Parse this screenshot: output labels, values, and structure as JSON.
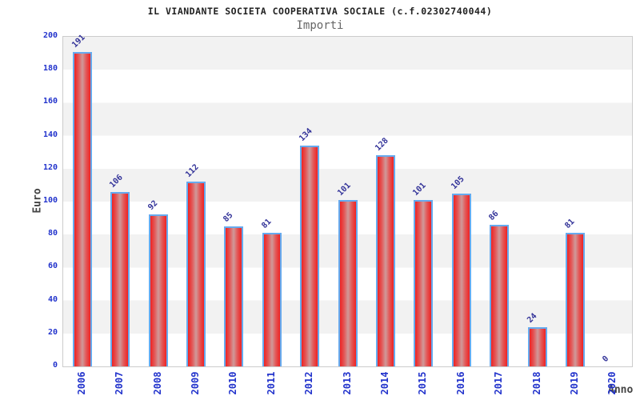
{
  "title": "IL VIANDANTE SOCIETA COOPERATIVA SOCIALE (c.f.02302740044)",
  "subtitle": "Importi",
  "chart_data": {
    "type": "bar",
    "categories": [
      "2006",
      "2007",
      "2008",
      "2009",
      "2010",
      "2011",
      "2012",
      "2013",
      "2014",
      "2015",
      "2016",
      "2017",
      "2018",
      "2019",
      "2020"
    ],
    "values": [
      191,
      106,
      92,
      112,
      85,
      81,
      134,
      101,
      128,
      101,
      105,
      86,
      24,
      81,
      0
    ],
    "title": "IL VIANDANTE SOCIETA COOPERATIVA SOCIALE (c.f.02302740044)",
    "subtitle": "Importi",
    "xlabel": "Anno",
    "ylabel": "Euro",
    "ylim": [
      0,
      200
    ],
    "yticks": [
      0,
      20,
      40,
      60,
      80,
      100,
      120,
      140,
      160,
      180,
      200
    ],
    "legend": "none",
    "grid": "alternating horizontal bands every 20 units",
    "colors": {
      "bar_fill_edge": "#ee2222",
      "bar_fill_mid": "#e25c5c",
      "bar_fill_center": "#cf9a9a",
      "bar_border": "#66aaee",
      "tick_label": "#2233cc",
      "value_label": "#333399",
      "band_gray": "#f2f2f2",
      "plot_border": "#cccccc",
      "title_color": "#222222",
      "subtitle_color": "#666666",
      "axis_label_color": "#444444"
    }
  }
}
